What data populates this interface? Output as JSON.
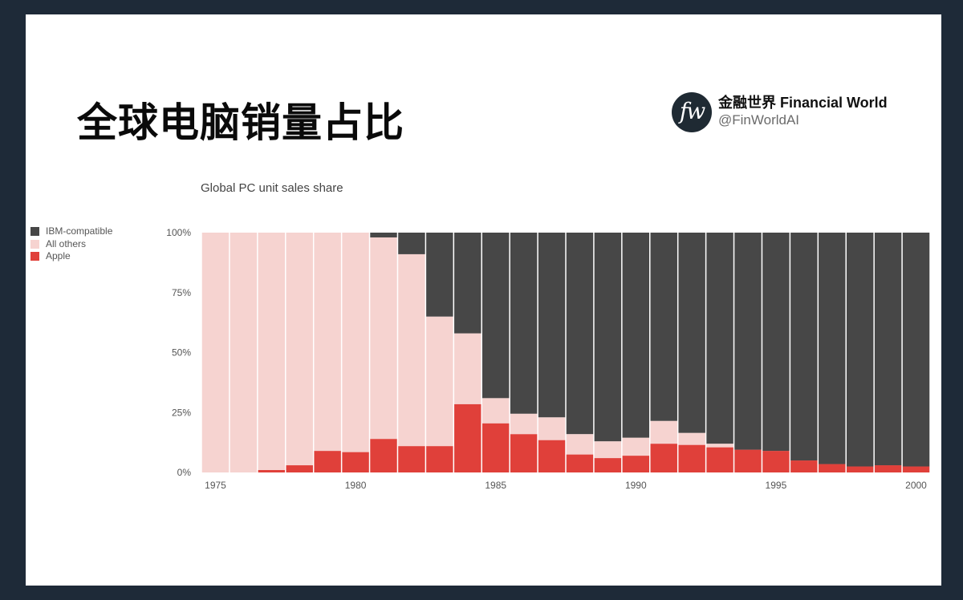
{
  "header": {
    "title": "全球电脑销量占比",
    "brand_logo_text": "fw",
    "brand_name": "金融世界 Financial World",
    "brand_handle": "@FinWorldAI"
  },
  "chart_data": {
    "type": "bar",
    "stacked": true,
    "title": "Global PC unit sales share",
    "xlabel": "",
    "ylabel": "",
    "ylim": [
      0,
      100
    ],
    "y_ticks": [
      "0%",
      "25%",
      "50%",
      "75%",
      "100%"
    ],
    "y_tick_values": [
      0,
      25,
      50,
      75,
      100
    ],
    "x_ticks": [
      "1975",
      "1980",
      "1985",
      "1990",
      "1995",
      "2000"
    ],
    "x_tick_values": [
      1975,
      1980,
      1985,
      1990,
      1995,
      2000
    ],
    "categories": [
      1975,
      1976,
      1977,
      1978,
      1979,
      1980,
      1981,
      1982,
      1983,
      1984,
      1985,
      1986,
      1987,
      1988,
      1989,
      1990,
      1991,
      1992,
      1993,
      1994,
      1995,
      1996,
      1997,
      1998,
      1999,
      2000
    ],
    "legend_position": "top-left",
    "grid": false,
    "series": [
      {
        "name": "Apple",
        "color": "#e0403a",
        "values": [
          0,
          0,
          1,
          3,
          9,
          8.5,
          14,
          11,
          11,
          28.5,
          20.5,
          16,
          13.5,
          7.5,
          6,
          7,
          12,
          11.5,
          10.5,
          9.5,
          9,
          5,
          3.5,
          2.5,
          3,
          2.5
        ]
      },
      {
        "name": "All others",
        "color": "#f6d3d0",
        "values": [
          100,
          100,
          99,
          97,
          91,
          91.5,
          84,
          80,
          54,
          29.5,
          10.5,
          8.5,
          9.5,
          8.5,
          7,
          7.5,
          9.5,
          5,
          1.5,
          0,
          0,
          0,
          0,
          0,
          0,
          0
        ]
      },
      {
        "name": "IBM-compatible",
        "color": "#474747",
        "values": [
          0,
          0,
          0,
          0,
          0,
          0,
          2,
          9,
          35,
          42,
          69,
          75.5,
          77,
          84,
          87,
          85.5,
          78.5,
          83.5,
          88,
          90.5,
          91,
          95,
          96.5,
          97.5,
          97,
          97.5
        ]
      }
    ],
    "legend_order": [
      "IBM-compatible",
      "All others",
      "Apple"
    ]
  }
}
